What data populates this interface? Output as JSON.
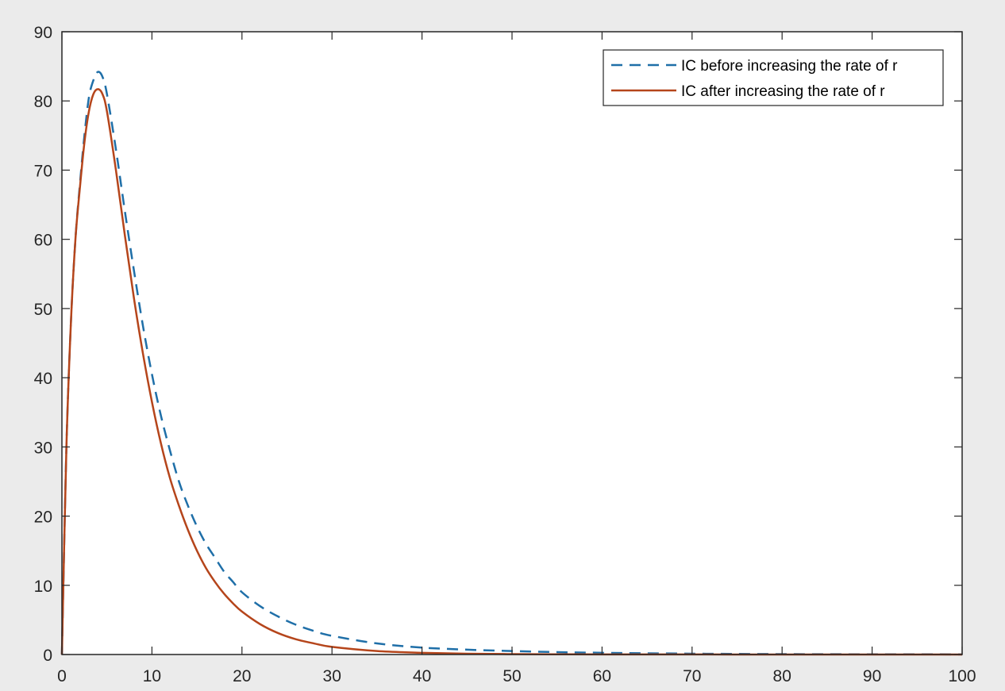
{
  "chart_data": {
    "type": "line",
    "title": "",
    "xlabel": "",
    "ylabel": "",
    "xlim": [
      0,
      100
    ],
    "ylim": [
      0,
      90
    ],
    "xticks": [
      0,
      10,
      20,
      30,
      40,
      50,
      60,
      70,
      80,
      90,
      100
    ],
    "yticks": [
      0,
      10,
      20,
      30,
      40,
      50,
      60,
      70,
      80,
      90
    ],
    "grid": false,
    "legend_position": "top-right",
    "series": [
      {
        "name": "IC before increasing the rate of r",
        "style": "dashed",
        "color": "#1f6fa8",
        "x": [
          0,
          0.5,
          1,
          1.5,
          2,
          2.5,
          3,
          3.5,
          4,
          4.5,
          5,
          6,
          7,
          8,
          9,
          10,
          11,
          12,
          13,
          14,
          15,
          16,
          17,
          18,
          19,
          20,
          22,
          24,
          26,
          28,
          30,
          35,
          40,
          45,
          50,
          55,
          60,
          70,
          80,
          90,
          100
        ],
        "y": [
          0,
          30,
          48,
          60,
          68,
          75,
          80.5,
          83,
          84.2,
          83.5,
          81,
          73,
          64,
          55.5,
          47.5,
          40.5,
          34.5,
          29.5,
          25,
          21.5,
          18.5,
          16,
          14,
          12,
          10.5,
          9,
          7,
          5.5,
          4.3,
          3.4,
          2.7,
          1.6,
          1,
          0.7,
          0.5,
          0.35,
          0.25,
          0.12,
          0.06,
          0.03,
          0.02
        ]
      },
      {
        "name": "IC after increasing the rate of r",
        "style": "solid",
        "color": "#b5451b",
        "x": [
          0,
          0.5,
          1,
          1.5,
          2,
          2.5,
          3,
          3.5,
          4,
          4.5,
          5,
          6,
          7,
          8,
          9,
          10,
          11,
          12,
          13,
          14,
          15,
          16,
          17,
          18,
          19,
          20,
          22,
          24,
          26,
          28,
          30,
          35,
          40,
          45,
          50,
          55,
          60,
          70,
          80,
          90,
          100
        ],
        "y": [
          0,
          30,
          48,
          60,
          67.5,
          74,
          78.5,
          81,
          81.7,
          81,
          78.5,
          70,
          60.5,
          51.5,
          43.5,
          36.5,
          30.5,
          25.5,
          21.5,
          18,
          15,
          12.5,
          10.5,
          8.8,
          7.4,
          6.2,
          4.4,
          3.1,
          2.2,
          1.6,
          1.1,
          0.5,
          0.25,
          0.12,
          0.06,
          0.03,
          0.02,
          0.01,
          0,
          0,
          0
        ]
      }
    ]
  }
}
